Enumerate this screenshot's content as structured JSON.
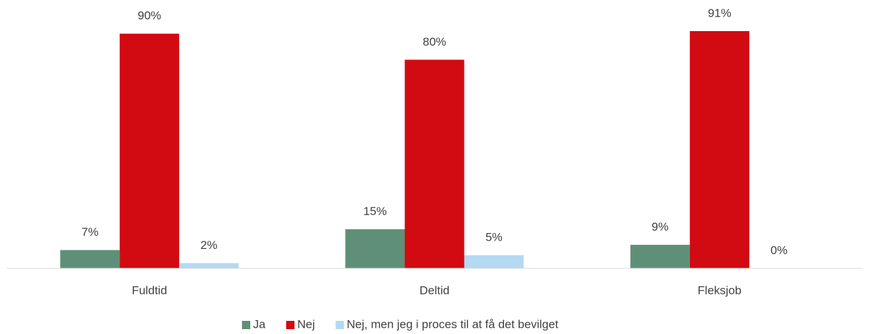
{
  "chart_data": {
    "type": "bar",
    "categories": [
      "Fuldtid",
      "Deltid",
      "Fleksjob"
    ],
    "series": [
      {
        "name": "Ja",
        "color": "#5f8f78",
        "values": [
          7,
          15,
          9
        ],
        "value_labels": [
          "7%",
          "15%",
          "9%"
        ]
      },
      {
        "name": "Nej",
        "color": "#d20a11",
        "values": [
          90,
          80,
          91
        ],
        "value_labels": [
          "90%",
          "80%",
          "91%"
        ]
      },
      {
        "name": "Nej, men jeg i proces til at få det bevilget",
        "color": "#b4d9f3",
        "values": [
          2,
          5,
          0
        ],
        "value_labels": [
          "2%",
          "5%",
          "0%"
        ]
      }
    ],
    "legend": "bottom"
  }
}
